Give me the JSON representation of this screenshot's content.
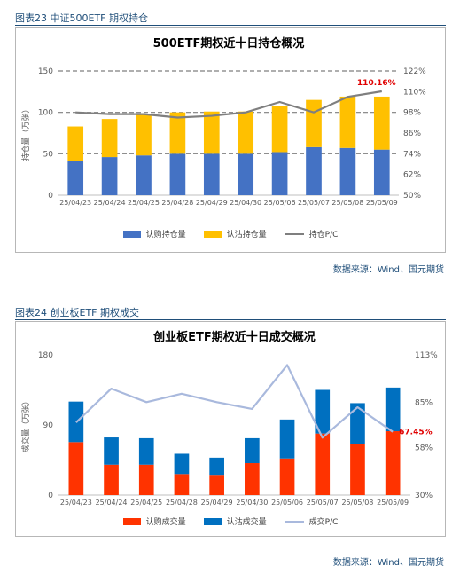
{
  "figures": [
    {
      "caption": "图表23 中证500ETF 期权持仓",
      "source": "数据来源：Wind、国元期货",
      "legend": [
        "认购持仓量",
        "认沽持仓量",
        "持仓P/C"
      ]
    },
    {
      "caption": "图表24 创业板ETF 期权成交",
      "source": "数据来源：Wind、国元期货",
      "legend": [
        "认购成交量",
        "认沽成交量",
        "成交P/C"
      ]
    }
  ],
  "chart_data": [
    {
      "type": "bar",
      "stacked": true,
      "title": "500ETF期权近十日持仓概况",
      "ylabel": "持仓量（万张）",
      "categories": [
        "25/04/23",
        "25/04/24",
        "25/04/25",
        "25/04/28",
        "25/04/29",
        "25/04/30",
        "25/05/06",
        "25/05/07",
        "25/05/08",
        "25/05/09"
      ],
      "series": [
        {
          "name": "认购持仓量",
          "type": "bar",
          "axis": "left",
          "color": "#4472c4",
          "values": [
            41,
            46,
            48,
            50,
            50,
            50,
            52,
            58,
            57,
            55
          ]
        },
        {
          "name": "认沽持仓量",
          "type": "bar",
          "axis": "left",
          "color": "#ffc000",
          "values": [
            42,
            46,
            49,
            50,
            51,
            51,
            56,
            57,
            62,
            64
          ]
        },
        {
          "name": "持仓P/C",
          "type": "line",
          "axis": "right",
          "color": "#7f7f7f",
          "values": [
            98,
            97,
            97,
            95,
            96,
            98,
            104,
            98,
            107,
            110.16
          ]
        }
      ],
      "ylim": [
        0,
        150
      ],
      "yticks": [
        "0",
        "50",
        "100",
        "150"
      ],
      "y2lim": [
        50,
        122
      ],
      "y2ticks": [
        "50%",
        "62%",
        "74%",
        "86%",
        "98%",
        "110%",
        "122%"
      ],
      "gridlines": [
        50,
        100,
        150
      ],
      "annotation": "110.16%",
      "legend_position": "bottom"
    },
    {
      "type": "bar",
      "stacked": true,
      "title": "创业板ETF期权近十日成交概况",
      "ylabel": "成交量（万张）",
      "categories": [
        "25/04/23",
        "25/04/24",
        "25/04/25",
        "25/04/28",
        "25/04/29",
        "25/04/30",
        "25/05/06",
        "25/05/07",
        "25/05/08",
        "25/05/09"
      ],
      "series": [
        {
          "name": "认购成交量",
          "type": "bar",
          "axis": "left",
          "color": "#ff3300",
          "values": [
            68,
            39,
            39,
            27,
            26,
            41,
            47,
            79,
            65,
            82
          ]
        },
        {
          "name": "认沽成交量",
          "type": "bar",
          "axis": "left",
          "color": "#0070c0",
          "values": [
            52,
            35,
            34,
            26,
            22,
            32,
            50,
            56,
            53,
            56
          ]
        },
        {
          "name": "成交P/C",
          "type": "line",
          "axis": "right",
          "color": "#a9b9dd",
          "values": [
            73,
            93,
            85,
            90,
            85,
            81,
            107,
            64,
            82,
            67.45
          ]
        }
      ],
      "ylim": [
        0,
        180
      ],
      "yticks": [
        "0",
        "90",
        "180"
      ],
      "y2lim": [
        30,
        113
      ],
      "y2ticks": [
        "30%",
        "58%",
        "85%",
        "113%"
      ],
      "annotation": "67.45%",
      "legend_position": "bottom"
    }
  ]
}
